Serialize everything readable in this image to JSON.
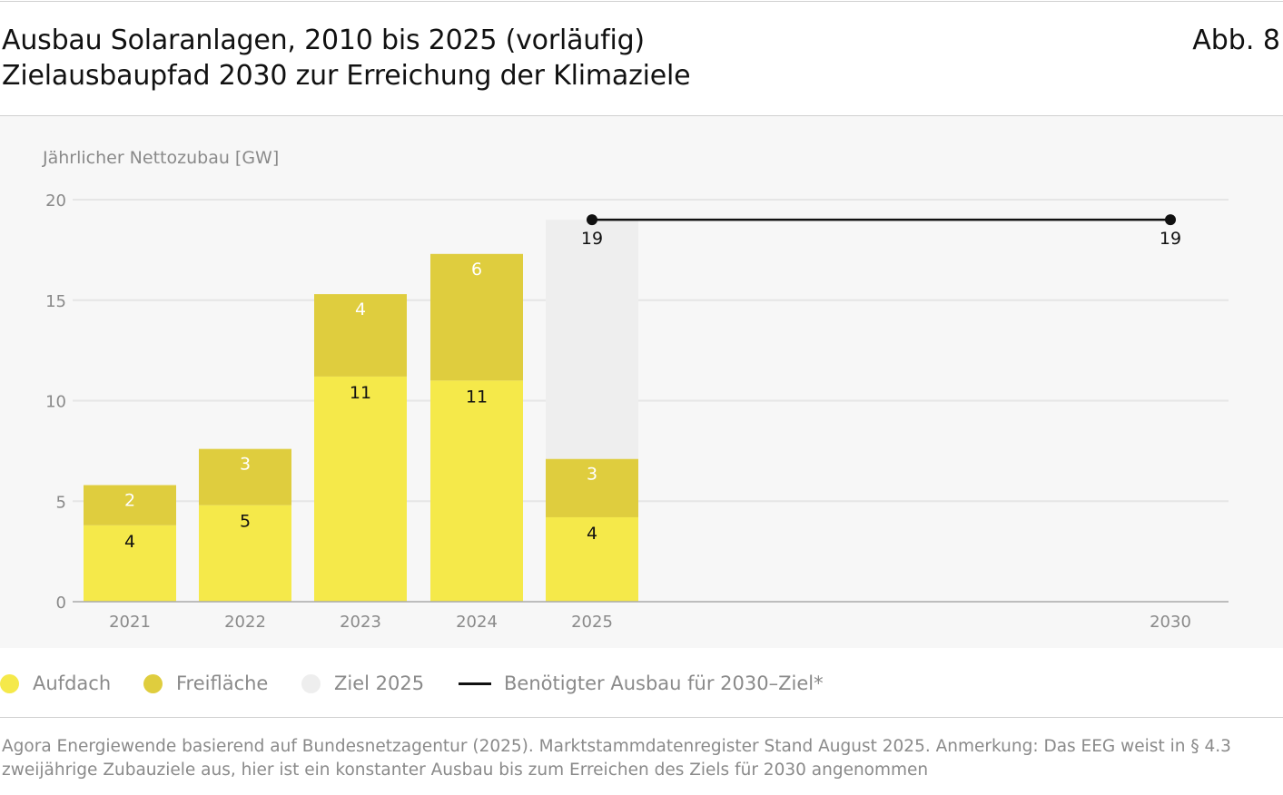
{
  "header": {
    "title_line1": "Ausbau Solaranlagen, 2010 bis 2025 (vorläufig)",
    "title_line2": "Zielausbaupfad 2030 zur Erreichung der Klimaziele",
    "figure_label": "Abb. 8"
  },
  "chart_data": {
    "type": "bar",
    "stacked": true,
    "ylabel": "Jährlicher Nettozubau [GW]",
    "ylim": [
      0,
      20
    ],
    "yticks": [
      0,
      5,
      10,
      15,
      20
    ],
    "grid": true,
    "categories": [
      "2021",
      "2022",
      "2023",
      "2024",
      "2025",
      "2030"
    ],
    "series": [
      {
        "name": "Aufdach",
        "values": [
          3.8,
          4.8,
          11.2,
          11.0,
          4.2,
          null
        ],
        "labels": [
          "4",
          "5",
          "11",
          "11",
          "4",
          ""
        ],
        "color": "#f5e94a",
        "label_color": "#111111"
      },
      {
        "name": "Freifläche",
        "values": [
          2.0,
          2.8,
          4.1,
          6.3,
          2.9,
          null
        ],
        "labels": [
          "2",
          "3",
          "4",
          "6",
          "3",
          ""
        ],
        "color": "#dfcd3e",
        "label_color": "#ffffff"
      },
      {
        "name": "Ziel 2025",
        "values": [
          null,
          null,
          null,
          null,
          11.9,
          null
        ],
        "labels": [
          "",
          "",
          "",
          "",
          "",
          ""
        ],
        "color": "#eeeeee"
      }
    ],
    "line": {
      "name": "Benötigter Ausbau für 2030–Ziel*",
      "x": [
        "2025",
        "2030"
      ],
      "values": [
        19,
        19
      ],
      "labels": [
        "19",
        "19"
      ],
      "color": "#111111"
    },
    "legend_position": "bottom-left"
  },
  "legend": {
    "items": [
      {
        "label": "Aufdach",
        "color": "#f5e94a",
        "kind": "dot"
      },
      {
        "label": "Freifläche",
        "color": "#dfcd3e",
        "kind": "dot"
      },
      {
        "label": "Ziel 2025",
        "color": "#eeeeee",
        "kind": "dot"
      },
      {
        "label": "Benötigter Ausbau für 2030–Ziel*",
        "color": "#111111",
        "kind": "line"
      }
    ]
  },
  "footer": {
    "line1": "Agora Energiewende basierend auf Bundesnetzagentur (2025). Marktstammdatenregister Stand August 2025. Anmerkung: Das EEG weist in § 4.3",
    "line2": "zweijährige Zubauziele aus, hier ist ein konstanter Ausbau bis zum Erreichen des Ziels für 2030 angenommen"
  }
}
